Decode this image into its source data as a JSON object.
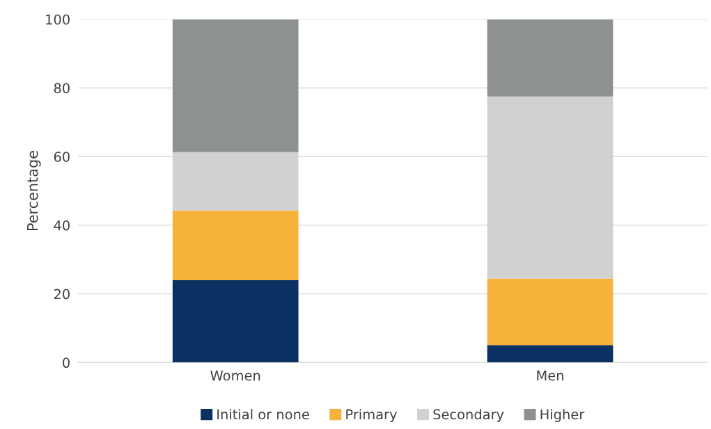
{
  "chart_data": {
    "type": "bar",
    "stacked": true,
    "ylabel": "Percentage",
    "categories": [
      "Women",
      "Men"
    ],
    "series": [
      {
        "name": "Initial or none",
        "color": "#0a3161",
        "values": [
          24,
          5.1
        ]
      },
      {
        "name": "Primary",
        "color": "#f6b33c",
        "values": [
          20.3,
          19.4
        ]
      },
      {
        "name": "Secondary",
        "color": "#d0d2d1",
        "values": [
          17,
          53
        ]
      },
      {
        "name": "Higher",
        "color": "#8e9192",
        "values": [
          38.7,
          22.5
        ]
      }
    ],
    "ylim": [
      0,
      100
    ],
    "yticks": [
      0,
      20,
      40,
      60,
      80,
      100
    ],
    "grid": "y",
    "legend": "bottom"
  }
}
